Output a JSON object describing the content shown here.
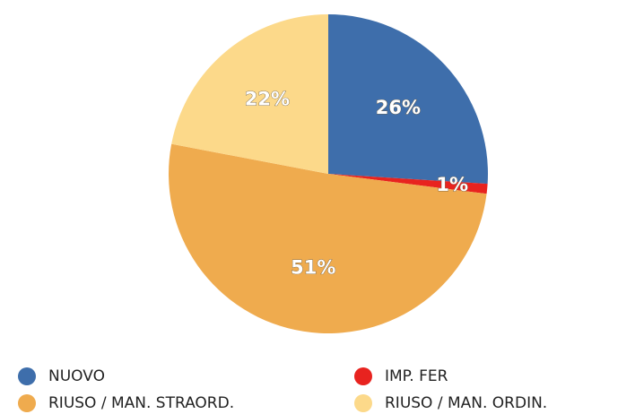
{
  "chart_data": {
    "type": "pie",
    "categories": [
      "NUOVO",
      "IMP. FER",
      "RIUSO / MAN. STRAORD.",
      "RIUSO / MAN. ORDIN."
    ],
    "values": [
      26,
      1,
      51,
      22
    ],
    "value_labels": [
      "26%",
      "1%",
      "51%",
      "22%"
    ],
    "colors": [
      "#3e6eab",
      "#e8231f",
      "#efab4e",
      "#fcd98a"
    ],
    "legend": "bottom"
  }
}
